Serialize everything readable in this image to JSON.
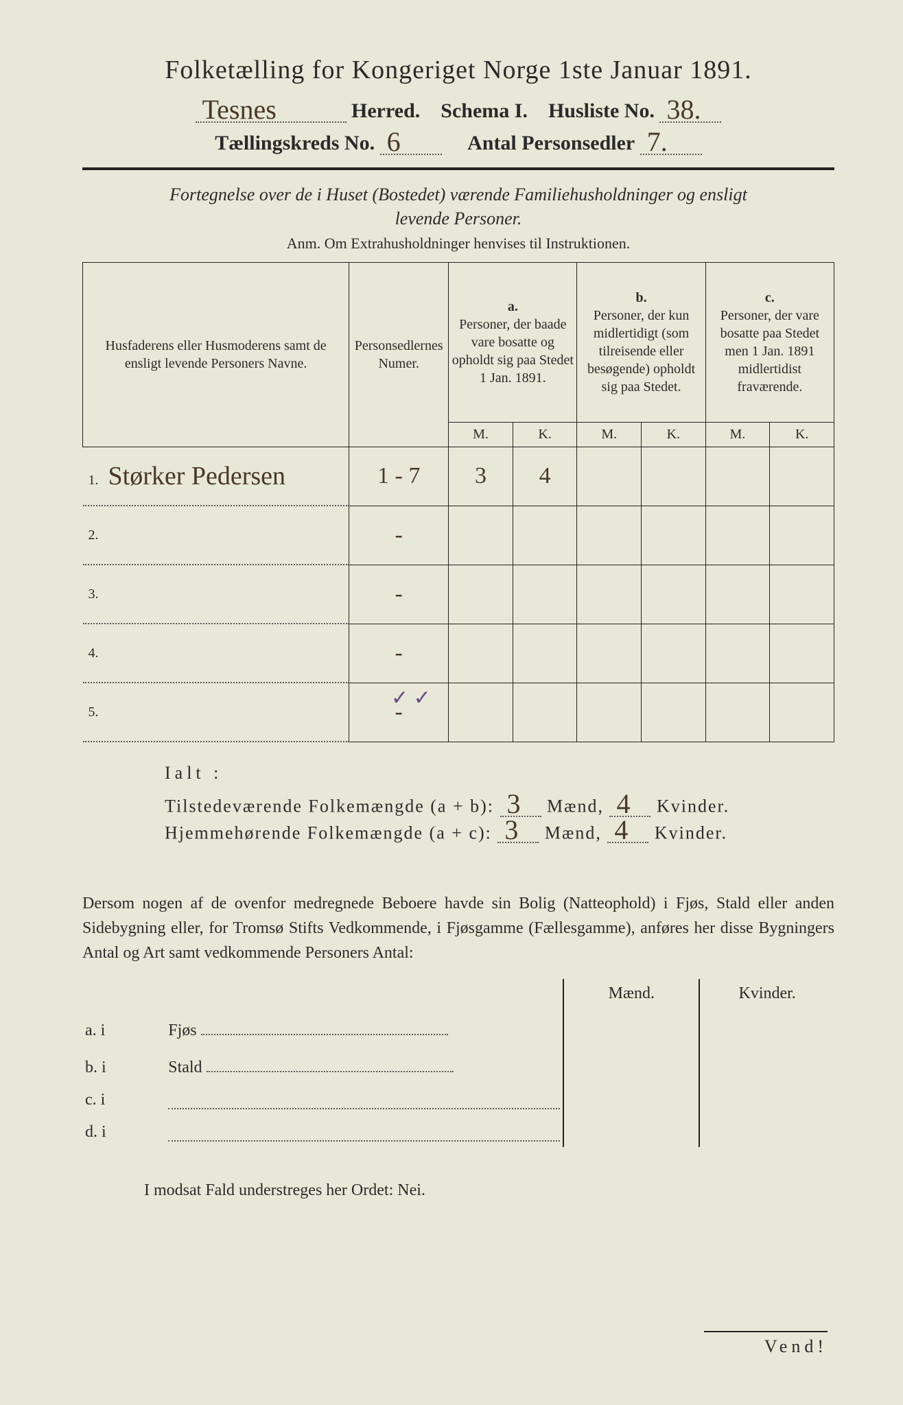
{
  "title": "Folketælling for Kongeriget Norge 1ste Januar 1891.",
  "header": {
    "herred_hw": "Tesnes",
    "herred_label": "Herred.",
    "schema_label": "Schema I.",
    "husliste_label": "Husliste No.",
    "husliste_hw": "38.",
    "kreds_label": "Tællingskreds No.",
    "kreds_hw": "6",
    "antal_label": "Antal Personsedler",
    "antal_hw": "7."
  },
  "subtitle_line1": "Fortegnelse over de i Huset (Bostedet) værende Familiehusholdninger og ensligt",
  "subtitle_line2": "levende Personer.",
  "anm": "Anm. Om Extrahusholdninger henvises til Instruktionen.",
  "table": {
    "col_names": "Husfaderens eller Husmoderens samt de ensligt levende Personers Navne.",
    "col_num": "Personsedlernes Numer.",
    "col_a_top": "a.",
    "col_a": "Personer, der baade vare bosatte og opholdt sig paa Stedet 1 Jan. 1891.",
    "col_b_top": "b.",
    "col_b": "Personer, der kun midlertidigt (som tilreisende eller besøgende) opholdt sig paa Stedet.",
    "col_c_top": "c.",
    "col_c": "Personer, der vare bosatte paa Stedet men 1 Jan. 1891 midlertidist fraværende.",
    "M": "M.",
    "K": "K.",
    "rows": [
      {
        "n": "1.",
        "name": "Størker Pedersen",
        "num": "1 - 7",
        "aM": "3",
        "aK": "4",
        "bM": "",
        "bK": "",
        "cM": "",
        "cK": ""
      },
      {
        "n": "2.",
        "name": "",
        "num": "-",
        "aM": "",
        "aK": "",
        "bM": "",
        "bK": "",
        "cM": "",
        "cK": ""
      },
      {
        "n": "3.",
        "name": "",
        "num": "-",
        "aM": "",
        "aK": "",
        "bM": "",
        "bK": "",
        "cM": "",
        "cK": ""
      },
      {
        "n": "4.",
        "name": "",
        "num": "-",
        "aM": "",
        "aK": "",
        "bM": "",
        "bK": "",
        "cM": "",
        "cK": ""
      },
      {
        "n": "5.",
        "name": "",
        "num": "-",
        "aM": "",
        "aK": "",
        "bM": "",
        "bK": "",
        "cM": "",
        "cK": ""
      }
    ]
  },
  "ialt": "Ialt :",
  "sum1_label": "Tilstedeværende Folkemængde (a + b):",
  "sum2_label": "Hjemmehørende Folkemængde (a + c):",
  "maend": "Mænd,",
  "kvinder": "Kvinder.",
  "sum1_m": "3",
  "sum1_k": "4",
  "sum2_m": "3",
  "sum2_k": "4",
  "para": "Dersom nogen af de ovenfor medregnede Beboere havde sin Bolig (Natteophold) i Fjøs, Stald eller anden Sidebygning eller, for Tromsø Stifts Vedkommende, i Fjøsgamme (Fællesgamme), anføres her disse Bygningers Antal og Art samt vedkommende Personers Antal:",
  "bolig": {
    "maend": "Mænd.",
    "kvinder": "Kvinder.",
    "a": "a.  i",
    "a_label": "Fjøs",
    "b": "b.  i",
    "b_label": "Stald",
    "c": "c.  i",
    "d": "d.  i"
  },
  "nei": "I modsat Fald understreges her Ordet: Nei.",
  "vend": "Vend!",
  "checks": "✓   ✓",
  "colors": {
    "paper": "#e8e8d8",
    "ink": "#2a2a2a",
    "handwriting": "#4a3828",
    "purple_check": "#6a4a8a"
  }
}
